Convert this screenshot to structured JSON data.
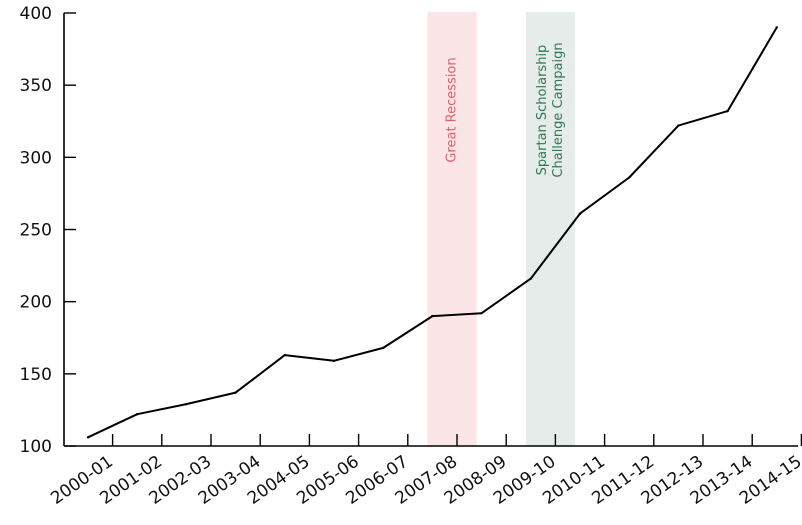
{
  "chart_data": {
    "type": "line",
    "categories": [
      "2000-01",
      "2001-02",
      "2002-03",
      "2003-04",
      "2004-05",
      "2005-06",
      "2006-07",
      "2007-08",
      "2008-09",
      "2009-10",
      "2010-11",
      "2011-12",
      "2012-13",
      "2013-14",
      "2014-15"
    ],
    "values": [
      106,
      122,
      129,
      137,
      163,
      159,
      168,
      190,
      192,
      216,
      261,
      286,
      322,
      332,
      390
    ],
    "ylim": [
      100,
      400
    ],
    "yticks": [
      100,
      150,
      200,
      250,
      300,
      350,
      400
    ],
    "grid": false,
    "line_color": "#000000",
    "bands": [
      {
        "label": "Great Recession",
        "from_category": "2007-08",
        "to_category": "2008-09",
        "fill": "#fbe5e6",
        "text_color": "#e0606a"
      },
      {
        "label_line1": "Spartan Scholarship",
        "label_line2": "Challenge Campaign",
        "from_category": "2009-10",
        "to_category": "2010-11",
        "fill": "#e5ece9",
        "text_color": "#2e7a55"
      }
    ]
  }
}
